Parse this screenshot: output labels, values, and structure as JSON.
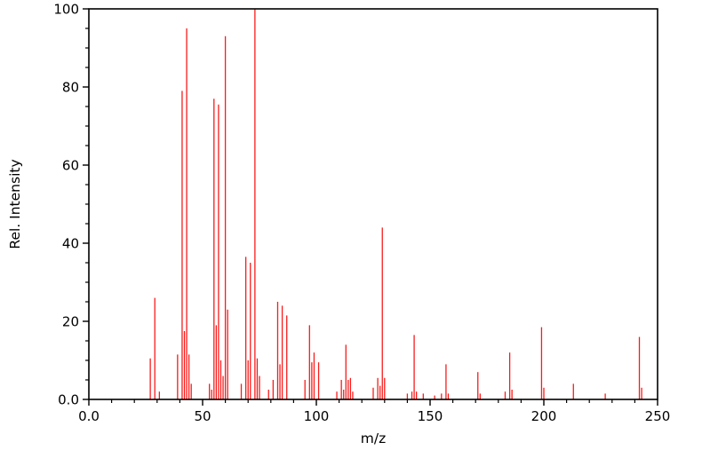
{
  "chart_data": {
    "type": "bar",
    "subtype": "mass-spectrum-sticks",
    "title": "",
    "xlabel": "m/z",
    "ylabel": "Rel. Intensity",
    "xlim": [
      0,
      250
    ],
    "ylim": [
      0,
      100
    ],
    "grid": false,
    "legend": false,
    "xticks": {
      "values": [
        0,
        50,
        100,
        150,
        200,
        250
      ],
      "labels": [
        "0.0",
        "50",
        "100",
        "150",
        "200",
        "250"
      ]
    },
    "yticks": {
      "values": [
        0,
        20,
        40,
        60,
        80,
        100
      ],
      "labels": [
        "0.0",
        "20",
        "40",
        "60",
        "80",
        "100"
      ]
    },
    "minor_tick_step_x": 10,
    "minor_tick_step_y": 5,
    "stick_color": "#f81b1b",
    "axis_color": "#000000",
    "background_color": "#ffffff",
    "peaks": [
      [
        27,
        10.5
      ],
      [
        29,
        26
      ],
      [
        31,
        2
      ],
      [
        39,
        11.5
      ],
      [
        41,
        79
      ],
      [
        42,
        17.5
      ],
      [
        43,
        95
      ],
      [
        44,
        11.5
      ],
      [
        45,
        4
      ],
      [
        53,
        4
      ],
      [
        54,
        2.5
      ],
      [
        55,
        77
      ],
      [
        56,
        19
      ],
      [
        57,
        75.5
      ],
      [
        58,
        10
      ],
      [
        59,
        6
      ],
      [
        60,
        93
      ],
      [
        61,
        23
      ],
      [
        67,
        4
      ],
      [
        69,
        36.5
      ],
      [
        70,
        10
      ],
      [
        71,
        35
      ],
      [
        73,
        100
      ],
      [
        74,
        10.5
      ],
      [
        75,
        6
      ],
      [
        79,
        2.5
      ],
      [
        81,
        5
      ],
      [
        83,
        25
      ],
      [
        84,
        9
      ],
      [
        85,
        24
      ],
      [
        87,
        21.5
      ],
      [
        95,
        5
      ],
      [
        97,
        19
      ],
      [
        98,
        9.5
      ],
      [
        99,
        12
      ],
      [
        101,
        9.5
      ],
      [
        109,
        2
      ],
      [
        111,
        5
      ],
      [
        112,
        2.5
      ],
      [
        113,
        14
      ],
      [
        114,
        5
      ],
      [
        115,
        5.5
      ],
      [
        116,
        2
      ],
      [
        125,
        3
      ],
      [
        127,
        5.5
      ],
      [
        128,
        3.5
      ],
      [
        129,
        44
      ],
      [
        130,
        5.5
      ],
      [
        140,
        1.5
      ],
      [
        142,
        2
      ],
      [
        143,
        16.5
      ],
      [
        144,
        2
      ],
      [
        147,
        1.5
      ],
      [
        152,
        1
      ],
      [
        155,
        1.5
      ],
      [
        157,
        9
      ],
      [
        158,
        1.5
      ],
      [
        171,
        7
      ],
      [
        172,
        1.5
      ],
      [
        183,
        2
      ],
      [
        185,
        12
      ],
      [
        186,
        2.5
      ],
      [
        199,
        18.5
      ],
      [
        200,
        3
      ],
      [
        213,
        4
      ],
      [
        227,
        1.5
      ],
      [
        242,
        16
      ],
      [
        243,
        3
      ]
    ]
  }
}
